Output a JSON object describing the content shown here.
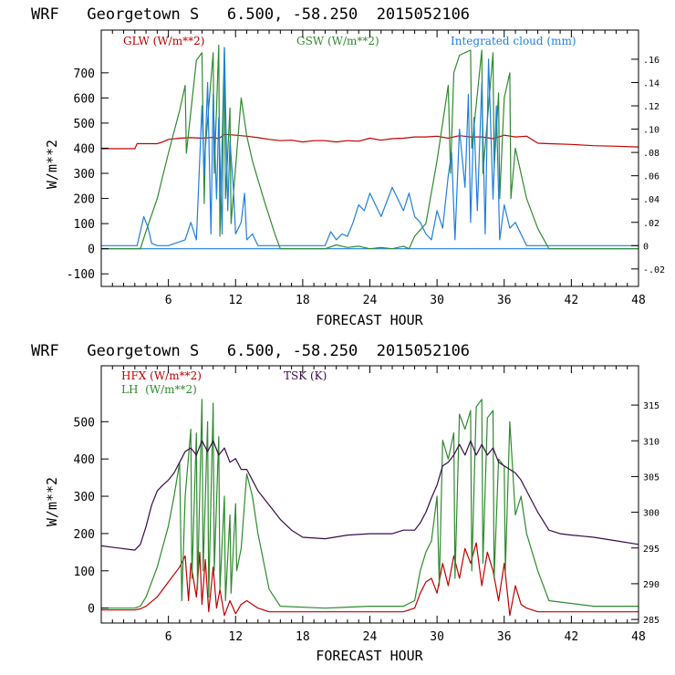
{
  "colors": {
    "red": "#c00000",
    "green": "#2e8b2e",
    "blue": "#1e7fe0",
    "purple": "#3a0a4a",
    "frame": "#000000"
  },
  "chart_data": [
    {
      "type": "line",
      "title": "WRF   Georgetown S   6.500, -58.250  2015052106",
      "xlabel": "FORECAST HOUR",
      "ylabel": "W/m**2",
      "xlim": [
        0,
        48
      ],
      "ylim": [
        -150,
        870
      ],
      "y2lim": [
        -0.035,
        0.185
      ],
      "x_ticks": [
        "6",
        "12",
        "18",
        "24",
        "30",
        "36",
        "42",
        "48"
      ],
      "x_tick_values": [
        6,
        12,
        18,
        24,
        30,
        36,
        42,
        48
      ],
      "y_ticks": [
        "-100",
        "0",
        "100",
        "200",
        "300",
        "400",
        "500",
        "600",
        "700"
      ],
      "y_tick_values": [
        -100,
        0,
        100,
        200,
        300,
        400,
        500,
        600,
        700
      ],
      "y2_ticks": [
        "-.02",
        "0",
        ".02",
        ".04",
        ".06",
        ".08",
        ".10",
        ".12",
        ".14",
        ".16"
      ],
      "y2_tick_values": [
        -0.02,
        0,
        0.02,
        0.04,
        0.06,
        0.08,
        0.1,
        0.12,
        0.14,
        0.16
      ],
      "legend": [
        "GLW (W/m**2)",
        "GSW (W/m**2)",
        "Integrated cloud (mm)"
      ],
      "series": [
        {
          "name": "GLW (W/m**2)",
          "color": "red",
          "axis": "left",
          "x": [
            0,
            2,
            3,
            3.2,
            5,
            5.5,
            6,
            7,
            8,
            9,
            10,
            10.5,
            11,
            12,
            13,
            14,
            15,
            16,
            17,
            18,
            19,
            20,
            21,
            22,
            23,
            24,
            25,
            26,
            27,
            28,
            29,
            30,
            31,
            32,
            33,
            34,
            35,
            36,
            37,
            38,
            39,
            40,
            42,
            44,
            46,
            48
          ],
          "y": [
            398,
            398,
            398,
            418,
            418,
            425,
            435,
            440,
            442,
            440,
            443,
            438,
            455,
            452,
            448,
            442,
            435,
            430,
            432,
            425,
            430,
            430,
            425,
            430,
            428,
            440,
            432,
            438,
            440,
            445,
            445,
            448,
            440,
            450,
            445,
            445,
            438,
            452,
            445,
            448,
            420,
            418,
            415,
            410,
            408,
            405
          ]
        },
        {
          "name": "GSW (W/m**2)",
          "color": "green",
          "axis": "left",
          "x": [
            0,
            3.5,
            4,
            5,
            6,
            7,
            7.5,
            7.6,
            8.5,
            9,
            9.2,
            9.3,
            10,
            10.1,
            10.5,
            10.6,
            11,
            11.1,
            11.5,
            11.6,
            12.5,
            13,
            13.5,
            14.5,
            15.5,
            16,
            20,
            21,
            22,
            23,
            24,
            25,
            26,
            27,
            27.5,
            28,
            29,
            30,
            30.5,
            31,
            31.2,
            31.5,
            32,
            33,
            33.1,
            34,
            34.1,
            35,
            35.1,
            35.5,
            35.6,
            36,
            36.5,
            36.6,
            37,
            38,
            39,
            40,
            44,
            48
          ],
          "y": [
            0,
            0,
            70,
            200,
            380,
            550,
            650,
            380,
            750,
            780,
            180,
            400,
            780,
            300,
            810,
            50,
            800,
            200,
            560,
            100,
            600,
            450,
            350,
            200,
            60,
            0,
            0,
            15,
            5,
            10,
            0,
            5,
            0,
            10,
            0,
            50,
            100,
            350,
            500,
            650,
            300,
            700,
            770,
            790,
            400,
            790,
            300,
            780,
            320,
            620,
            200,
            600,
            700,
            200,
            400,
            200,
            80,
            0,
            0,
            0
          ]
        },
        {
          "name": "Integrated cloud (mm)",
          "color": "blue",
          "axis": "right",
          "x": [
            0,
            3.2,
            3.8,
            4.2,
            4.5,
            5,
            6,
            7.5,
            8,
            8.5,
            9,
            9.2,
            9.5,
            9.8,
            10,
            10.3,
            10.5,
            10.8,
            11,
            11.3,
            11.5,
            11.8,
            12,
            12.5,
            12.8,
            13,
            13.5,
            14,
            20,
            20.5,
            21,
            21.5,
            22,
            22.5,
            23,
            23.5,
            24,
            25,
            26,
            27,
            27.5,
            28,
            28.5,
            29,
            29.5,
            30,
            30.5,
            31,
            31.3,
            31.6,
            32,
            32.5,
            32.8,
            33,
            33.3,
            33.6,
            34,
            34.3,
            34.6,
            35,
            35.3,
            35.6,
            36,
            36.5,
            37,
            38,
            48
          ],
          "y": [
            0,
            0,
            0.025,
            0.015,
            0.002,
            0,
            0,
            0.005,
            0.02,
            0.005,
            0.12,
            0.06,
            0.14,
            0.01,
            0.13,
            0.04,
            0.11,
            0.01,
            0.17,
            0.03,
            0.09,
            0.05,
            0.01,
            0.02,
            0.045,
            0.005,
            0.01,
            0,
            0,
            0.012,
            0.005,
            0.01,
            0.008,
            0.02,
            0.035,
            0.03,
            0.045,
            0.025,
            0.05,
            0.03,
            0.045,
            0.025,
            0.02,
            0.01,
            0.005,
            0.03,
            0.015,
            0.06,
            0.08,
            0.005,
            0.1,
            0.05,
            0.13,
            0.02,
            0.11,
            0.03,
            0.14,
            0.01,
            0.16,
            0.04,
            0.12,
            0.005,
            0.035,
            0.015,
            0.02,
            0,
            0
          ]
        }
      ]
    },
    {
      "type": "line",
      "title": "WRF   Georgetown S   6.500, -58.250  2015052106",
      "xlabel": "FORECAST HOUR",
      "ylabel": "W/m**2",
      "xlim": [
        0,
        48
      ],
      "ylim": [
        -40,
        650
      ],
      "y2lim": [
        284.5,
        320.5
      ],
      "x_ticks": [
        "6",
        "12",
        "18",
        "24",
        "30",
        "36",
        "42",
        "48"
      ],
      "x_tick_values": [
        6,
        12,
        18,
        24,
        30,
        36,
        42,
        48
      ],
      "y_ticks": [
        "0",
        "100",
        "200",
        "300",
        "400",
        "500"
      ],
      "y_tick_values": [
        0,
        100,
        200,
        300,
        400,
        500
      ],
      "y2_ticks": [
        "285",
        "290",
        "295",
        "300",
        "305",
        "310",
        "315"
      ],
      "y2_tick_values": [
        285,
        290,
        295,
        300,
        305,
        310,
        315
      ],
      "legend": [
        "HFX (W/m**2)",
        "LH  (W/m**2)",
        "TSK (K)"
      ],
      "series": [
        {
          "name": "HFX (W/m**2)",
          "color": "red",
          "axis": "left",
          "x": [
            0,
            3,
            3.5,
            4,
            5,
            6,
            7,
            7.5,
            7.8,
            8,
            8.5,
            8.8,
            9,
            9.3,
            9.6,
            10,
            10.3,
            10.6,
            11,
            11.5,
            12,
            12.5,
            13,
            14,
            15,
            16,
            20,
            24,
            27,
            28,
            28.5,
            29,
            29.5,
            30,
            30.5,
            31,
            31.5,
            32,
            32.5,
            33,
            33.5,
            34,
            34.5,
            35,
            35.5,
            36,
            36.5,
            37,
            37.5,
            38,
            39,
            40,
            44,
            48
          ],
          "y": [
            -5,
            -5,
            -2,
            5,
            30,
            70,
            110,
            140,
            20,
            120,
            30,
            150,
            10,
            130,
            -10,
            110,
            0,
            50,
            -20,
            20,
            -15,
            10,
            20,
            0,
            -10,
            -10,
            -10,
            -10,
            -10,
            0,
            40,
            70,
            80,
            40,
            120,
            60,
            140,
            80,
            160,
            120,
            175,
            60,
            150,
            100,
            20,
            120,
            -20,
            60,
            10,
            0,
            -10,
            -10,
            -10,
            -10
          ]
        },
        {
          "name": "LH  (W/m**2)",
          "color": "green",
          "axis": "left",
          "x": [
            0,
            3,
            3.5,
            4,
            5,
            6,
            6.5,
            7,
            7.2,
            7.5,
            8,
            8.1,
            8.5,
            8.6,
            9,
            9.1,
            9.5,
            9.6,
            10,
            10.1,
            10.5,
            10.6,
            11,
            11.1,
            11.5,
            11.6,
            12,
            12.1,
            12.5,
            13,
            13.5,
            14,
            15,
            16,
            20,
            24,
            27,
            28,
            28.5,
            29,
            29.5,
            30,
            30.2,
            30.5,
            31,
            31.5,
            31.6,
            32,
            32.5,
            33,
            33.1,
            33.5,
            34,
            34.1,
            34.5,
            35,
            35.1,
            35.5,
            36,
            36.1,
            36.5,
            37,
            37.5,
            38,
            39,
            40,
            44,
            48
          ],
          "y": [
            0,
            0,
            5,
            30,
            110,
            220,
            300,
            390,
            20,
            300,
            480,
            80,
            470,
            50,
            560,
            100,
            500,
            30,
            550,
            100,
            460,
            50,
            300,
            20,
            250,
            40,
            280,
            100,
            160,
            360,
            300,
            200,
            50,
            5,
            0,
            5,
            5,
            20,
            100,
            150,
            180,
            300,
            60,
            450,
            400,
            470,
            80,
            520,
            480,
            530,
            100,
            540,
            560,
            120,
            510,
            530,
            80,
            400,
            380,
            100,
            500,
            250,
            300,
            200,
            100,
            20,
            5,
            5
          ]
        },
        {
          "name": "TSK (K)",
          "color": "purple",
          "axis": "right",
          "x": [
            0,
            3,
            3.5,
            4,
            4.5,
            5,
            5.5,
            6,
            6.5,
            7,
            7.5,
            8,
            8.5,
            9,
            9.5,
            10,
            10.5,
            11,
            11.5,
            12,
            12.5,
            13,
            13.5,
            14,
            15,
            16,
            17,
            18,
            20,
            22,
            24,
            26,
            27,
            28,
            28.5,
            29,
            29.5,
            30,
            30.5,
            31,
            31.5,
            32,
            32.5,
            33,
            33.5,
            34,
            34.5,
            35,
            35.5,
            36,
            36.5,
            37,
            37.5,
            38,
            39,
            40,
            41,
            42,
            44,
            46,
            48
          ],
          "y": [
            295.3,
            294.7,
            295.5,
            298,
            301,
            303,
            303.8,
            304.5,
            305.5,
            307,
            308.5,
            309,
            308,
            310,
            308.5,
            310,
            308,
            309,
            307,
            307.5,
            306,
            306,
            304.5,
            303,
            301,
            299,
            297.5,
            296.5,
            296.3,
            296.8,
            297,
            297,
            297.5,
            297.5,
            298.5,
            300,
            302,
            303.8,
            306.5,
            307,
            308,
            309.5,
            308,
            310,
            308,
            309.5,
            308,
            309,
            307,
            306.5,
            306,
            305.5,
            304.5,
            303,
            300,
            297.5,
            297,
            296.8,
            296.5,
            296,
            295.5
          ]
        }
      ]
    }
  ]
}
